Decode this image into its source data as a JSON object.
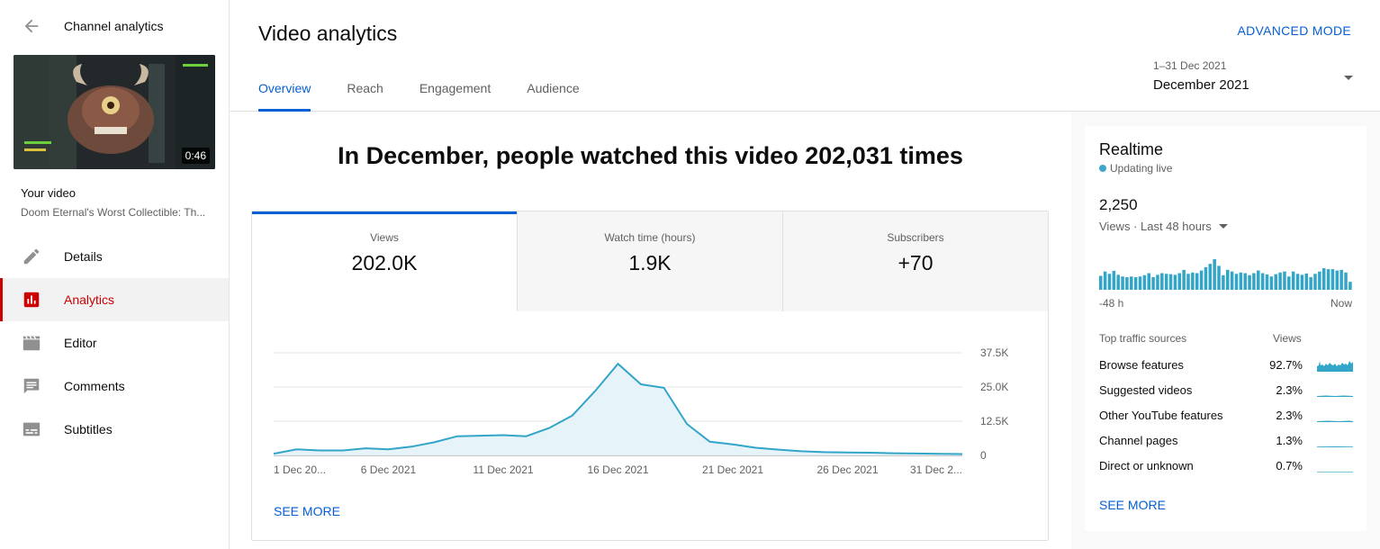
{
  "sidebar": {
    "title": "Channel analytics",
    "back_icon": "arrow-back-icon",
    "thumbnail_duration": "0:46",
    "your_video_label": "Your video",
    "video_title": "Doom Eternal's Worst Collectible: Th...",
    "items": [
      {
        "label": "Details",
        "icon": "pencil-icon"
      },
      {
        "label": "Analytics",
        "icon": "analytics-icon",
        "active": true
      },
      {
        "label": "Editor",
        "icon": "clapperboard-icon"
      },
      {
        "label": "Comments",
        "icon": "comment-icon"
      },
      {
        "label": "Subtitles",
        "icon": "subtitles-icon"
      }
    ],
    "accent_color": "#cc0000"
  },
  "header": {
    "title": "Video analytics",
    "advanced_mode": "ADVANCED MODE",
    "tabs": [
      {
        "label": "Overview",
        "active": true
      },
      {
        "label": "Reach"
      },
      {
        "label": "Engagement"
      },
      {
        "label": "Audience"
      }
    ],
    "date_range": "1–31 Dec 2021",
    "date_label": "December 2021",
    "accent_color": "#065fd4"
  },
  "main": {
    "headline": "In December, people watched this video 202,031 times",
    "metrics": [
      {
        "label": "Views",
        "value": "202.0K",
        "active": true
      },
      {
        "label": "Watch time (hours)",
        "value": "1.9K"
      },
      {
        "label": "Subscribers",
        "value": "+70"
      }
    ],
    "see_more": "SEE MORE"
  },
  "chart_data": {
    "type": "area",
    "title": "",
    "xlabel": "",
    "ylabel": "",
    "x_tick_labels": [
      "1 Dec 20...",
      "6 Dec 2021",
      "11 Dec 2021",
      "16 Dec 2021",
      "21 Dec 2021",
      "26 Dec 2021",
      "31 Dec 2..."
    ],
    "y_tick_labels": [
      "0",
      "12.5K",
      "25.0K",
      "37.5K"
    ],
    "ylim": [
      0,
      37500
    ],
    "x": [
      1,
      2,
      3,
      4,
      5,
      6,
      7,
      8,
      9,
      10,
      11,
      12,
      13,
      14,
      15,
      16,
      17,
      18,
      19,
      20,
      21,
      22,
      23,
      24,
      25,
      26,
      27,
      28,
      29,
      30,
      31
    ],
    "series": [
      {
        "values": [
          600,
          2200,
          1800,
          1800,
          2600,
          2200,
          3200,
          4800,
          7000,
          7200,
          7400,
          7000,
          10000,
          14500,
          23500,
          33500,
          26000,
          24700,
          11500,
          5000,
          4000,
          2800,
          2100,
          1500,
          1200,
          1100,
          1000,
          800,
          700,
          600,
          500
        ]
      }
    ],
    "color": "#32a5c8",
    "fill": "#e6f3f9",
    "grid": true
  },
  "realtime": {
    "title": "Realtime",
    "status": "Updating live",
    "count": "2,250",
    "period": "Views · Last 48 hours",
    "axis_left": "-48 h",
    "axis_right": "Now",
    "bars": [
      42,
      55,
      48,
      57,
      45,
      40,
      38,
      40,
      38,
      40,
      44,
      50,
      38,
      45,
      50,
      48,
      47,
      45,
      50,
      60,
      48,
      52,
      50,
      58,
      68,
      78,
      92,
      72,
      44,
      60,
      55,
      48,
      52,
      50,
      44,
      50,
      58,
      50,
      46,
      40,
      47,
      52,
      55,
      40,
      55,
      48,
      45,
      49,
      38,
      48,
      55,
      65,
      62,
      62,
      58,
      60,
      52,
      24
    ],
    "bar_color": "#32a5c8",
    "traffic_header": "Top traffic sources",
    "traffic_col": "Views",
    "sources": [
      {
        "name": "Browse features",
        "pct": "92.7%"
      },
      {
        "name": "Suggested videos",
        "pct": "2.3%"
      },
      {
        "name": "Other YouTube features",
        "pct": "2.3%"
      },
      {
        "name": "Channel pages",
        "pct": "1.3%"
      },
      {
        "name": "Direct or unknown",
        "pct": "0.7%"
      }
    ],
    "see_more": "SEE MORE"
  }
}
